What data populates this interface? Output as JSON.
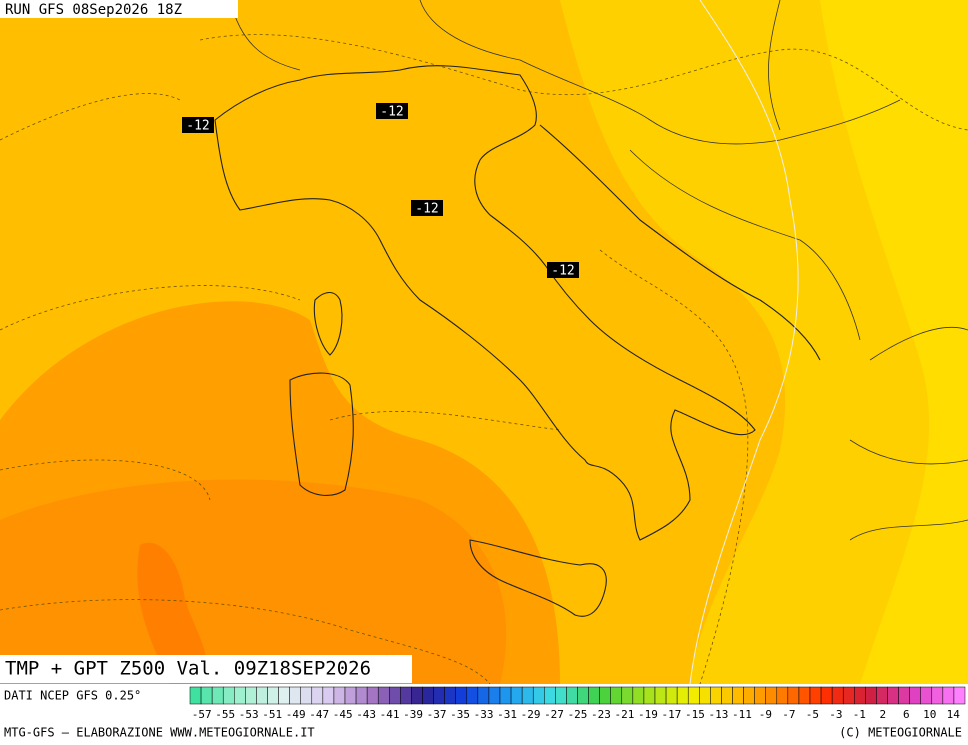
{
  "header": {
    "run": "RUN GFS 08Sep2026 18Z"
  },
  "map": {
    "field_label": "TMP + GPT Z500 Val. 09Z18SEP2026",
    "contour_labels": [
      "-12",
      "-12",
      "-12",
      "-12"
    ]
  },
  "colorbar": {
    "labels": [
      -57,
      -55,
      -53,
      -51,
      -49,
      -47,
      -45,
      -43,
      -41,
      -39,
      -37,
      -35,
      -33,
      -31,
      -29,
      -27,
      -25,
      -23,
      -21,
      -19,
      -17,
      -15,
      -13,
      -11,
      -9,
      -7,
      -5,
      -3,
      -1,
      2,
      6,
      10,
      14
    ]
  },
  "footer": {
    "source": "DATI NCEP GFS 0.25°",
    "credit_left": "MTG-GFS — ELABORAZIONE WWW.METEOGIORNALE.IT",
    "credit_right": "(C) METEOGIORNALE"
  }
}
